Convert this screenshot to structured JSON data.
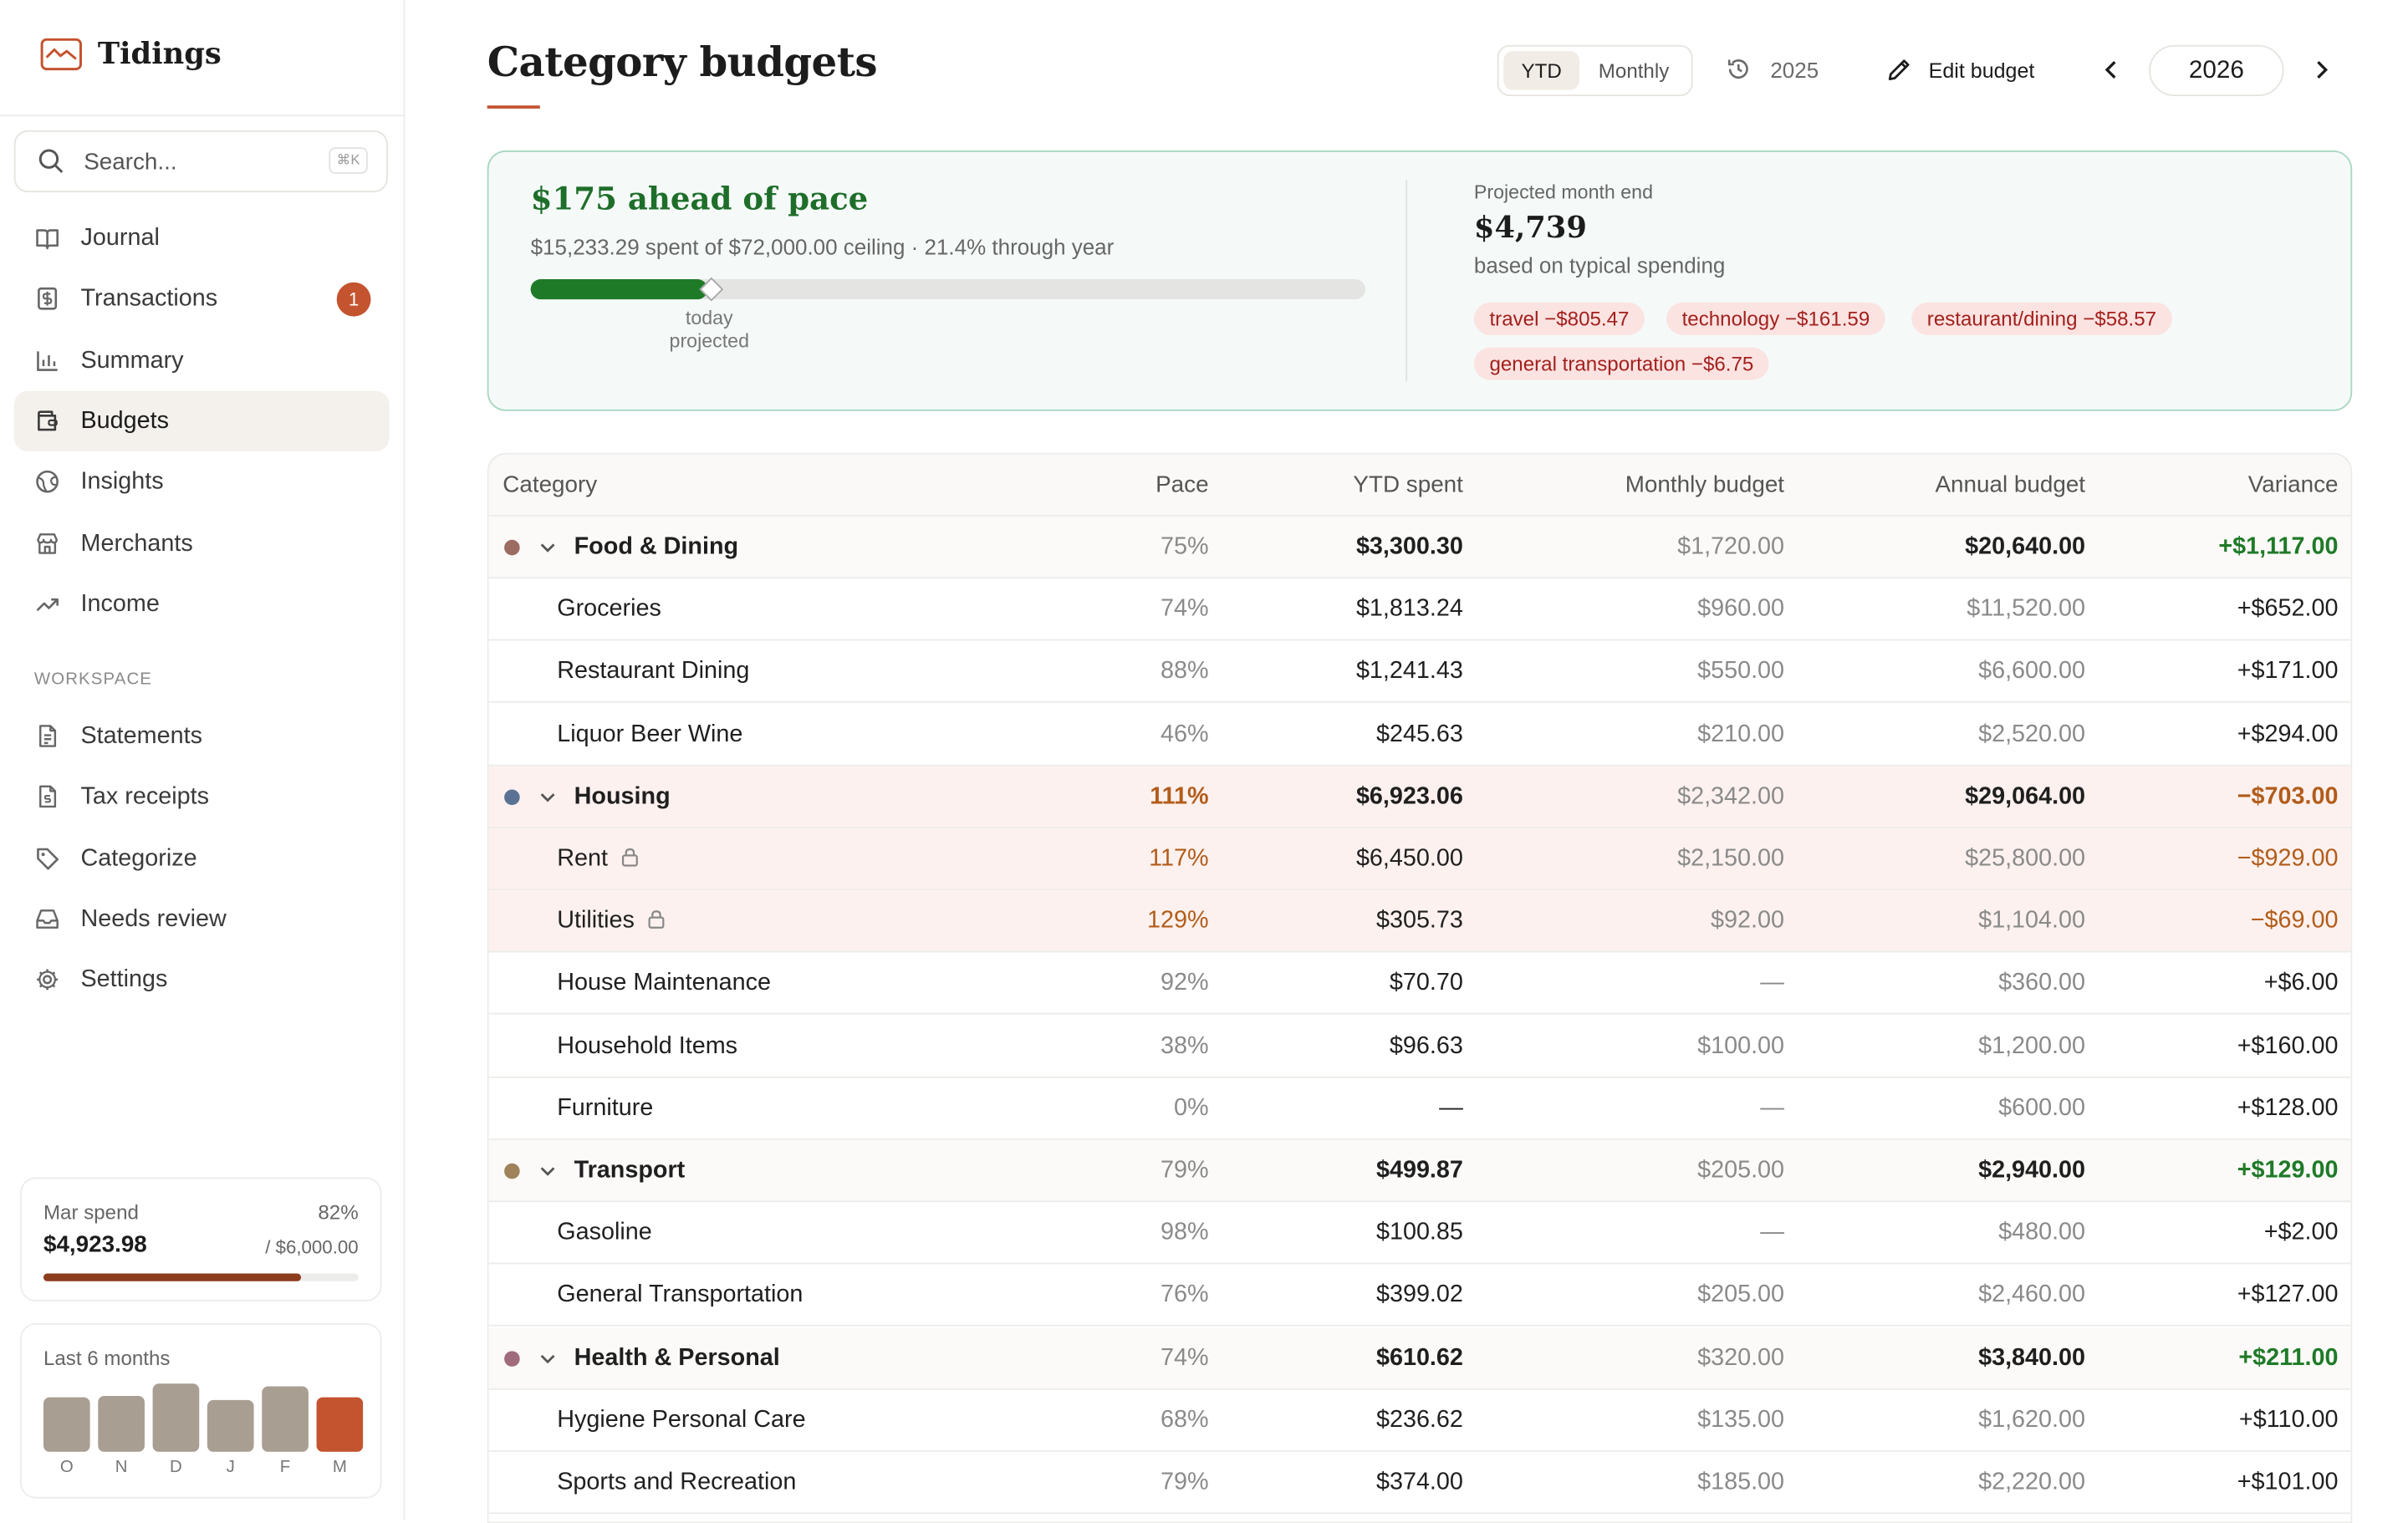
{
  "app": {
    "name": "Tidings"
  },
  "search": {
    "placeholder": "Search...",
    "shortcut": "⌘K"
  },
  "nav": {
    "items": [
      {
        "label": "Journal",
        "icon": "book-icon"
      },
      {
        "label": "Transactions",
        "icon": "receipt-icon",
        "badge": "1"
      },
      {
        "label": "Summary",
        "icon": "bar-chart-icon"
      },
      {
        "label": "Budgets",
        "icon": "wallet-icon",
        "active": true
      },
      {
        "label": "Insights",
        "icon": "globe-icon"
      },
      {
        "label": "Merchants",
        "icon": "store-icon"
      },
      {
        "label": "Income",
        "icon": "trending-up-icon"
      }
    ],
    "workspace_label": "WORKSPACE",
    "workspace": [
      {
        "label": "Statements",
        "icon": "document-icon"
      },
      {
        "label": "Tax receipts",
        "icon": "file-dollar-icon"
      },
      {
        "label": "Categorize",
        "icon": "tag-icon"
      },
      {
        "label": "Needs review",
        "icon": "inbox-icon"
      },
      {
        "label": "Settings",
        "icon": "gear-icon"
      }
    ]
  },
  "spend_card": {
    "label": "Mar spend",
    "percent": "82%",
    "amount": "$4,923.98",
    "of": "/ $6,000.00",
    "progress": 0.82,
    "fill_color": "#8b3d1e"
  },
  "months_card": {
    "label": "Last 6 months",
    "months": [
      "O",
      "N",
      "D",
      "J",
      "F",
      "M"
    ],
    "relative_values": [
      0.8,
      0.82,
      1.0,
      0.76,
      0.96,
      0.8
    ],
    "bar_color": "#a99e92",
    "current_color": "#c4532f"
  },
  "header": {
    "title": "Category budgets",
    "view_options": [
      "YTD",
      "Monthly"
    ],
    "selected_view": "YTD",
    "compare_year": "2025",
    "edit_label": "Edit budget",
    "year": "2026"
  },
  "pace": {
    "headline": "$175 ahead of pace",
    "subtitle": "$15,233.29 spent of $72,000.00 ceiling · 21.4% through year",
    "spent_fraction": 0.2116,
    "today_fraction": 0.214,
    "marker_label": "today\nprojected",
    "projected_label": "Projected month end",
    "projected_value": "$4,739",
    "projected_note": "based on typical spending",
    "overruns": [
      "travel −$805.47",
      "technology −$161.59",
      "restaurant/dining −$58.57",
      "general transportation −$6.75"
    ],
    "accent_color": "#1e6e2a",
    "chip_bg": "#fbe3e1",
    "chip_text": "#a3201d"
  },
  "table": {
    "columns": [
      "Category",
      "Pace",
      "YTD spent",
      "Monthly budget",
      "Annual budget",
      "Variance"
    ],
    "rows": [
      {
        "type": "group",
        "name": "Food & Dining",
        "color": "#9c6b62",
        "pace": "75%",
        "spent": "$3,300.30",
        "monthly": "$1,720.00",
        "annual": "$20,640.00",
        "variance": "+$1,117.00",
        "status": "good"
      },
      {
        "type": "item",
        "name": "Groceries",
        "pace": "74%",
        "spent": "$1,813.24",
        "monthly": "$960.00",
        "annual": "$11,520.00",
        "variance": "+$652.00"
      },
      {
        "type": "item",
        "name": "Restaurant Dining",
        "pace": "88%",
        "spent": "$1,241.43",
        "monthly": "$550.00",
        "annual": "$6,600.00",
        "variance": "+$171.00"
      },
      {
        "type": "item",
        "name": "Liquor Beer Wine",
        "pace": "46%",
        "spent": "$245.63",
        "monthly": "$210.00",
        "annual": "$2,520.00",
        "variance": "+$294.00"
      },
      {
        "type": "group",
        "name": "Housing",
        "color": "#5a7394",
        "pace": "111%",
        "spent": "$6,923.06",
        "monthly": "$2,342.00",
        "annual": "$29,064.00",
        "variance": "−$703.00",
        "status": "over"
      },
      {
        "type": "item",
        "name": "Rent",
        "lock": true,
        "pace": "117%",
        "spent": "$6,450.00",
        "monthly": "$2,150.00",
        "annual": "$25,800.00",
        "variance": "−$929.00",
        "status": "over"
      },
      {
        "type": "item",
        "name": "Utilities",
        "lock": true,
        "pace": "129%",
        "spent": "$305.73",
        "monthly": "$92.00",
        "annual": "$1,104.00",
        "variance": "−$69.00",
        "status": "over"
      },
      {
        "type": "item",
        "name": "House Maintenance",
        "pace": "92%",
        "spent": "$70.70",
        "monthly": "—",
        "annual": "$360.00",
        "variance": "+$6.00"
      },
      {
        "type": "item",
        "name": "Household Items",
        "pace": "38%",
        "spent": "$96.63",
        "monthly": "$100.00",
        "annual": "$1,200.00",
        "variance": "+$160.00"
      },
      {
        "type": "item",
        "name": "Furniture",
        "pace": "0%",
        "spent": "—",
        "monthly": "—",
        "annual": "$600.00",
        "variance": "+$128.00"
      },
      {
        "type": "group",
        "name": "Transport",
        "color": "#9e825a",
        "pace": "79%",
        "spent": "$499.87",
        "monthly": "$205.00",
        "annual": "$2,940.00",
        "variance": "+$129.00",
        "status": "good"
      },
      {
        "type": "item",
        "name": "Gasoline",
        "pace": "98%",
        "spent": "$100.85",
        "monthly": "—",
        "annual": "$480.00",
        "variance": "+$2.00"
      },
      {
        "type": "item",
        "name": "General Transportation",
        "pace": "76%",
        "spent": "$399.02",
        "monthly": "$205.00",
        "annual": "$2,460.00",
        "variance": "+$127.00"
      },
      {
        "type": "group",
        "name": "Health & Personal",
        "color": "#a06b7c",
        "pace": "74%",
        "spent": "$610.62",
        "monthly": "$320.00",
        "annual": "$3,840.00",
        "variance": "+$211.00",
        "status": "good"
      },
      {
        "type": "item",
        "name": "Hygiene Personal Care",
        "pace": "68%",
        "spent": "$236.62",
        "monthly": "$135.00",
        "annual": "$1,620.00",
        "variance": "+$110.00"
      },
      {
        "type": "item",
        "name": "Sports and Recreation",
        "pace": "79%",
        "spent": "$374.00",
        "monthly": "$185.00",
        "annual": "$2,220.00",
        "variance": "+$101.00"
      }
    ]
  }
}
